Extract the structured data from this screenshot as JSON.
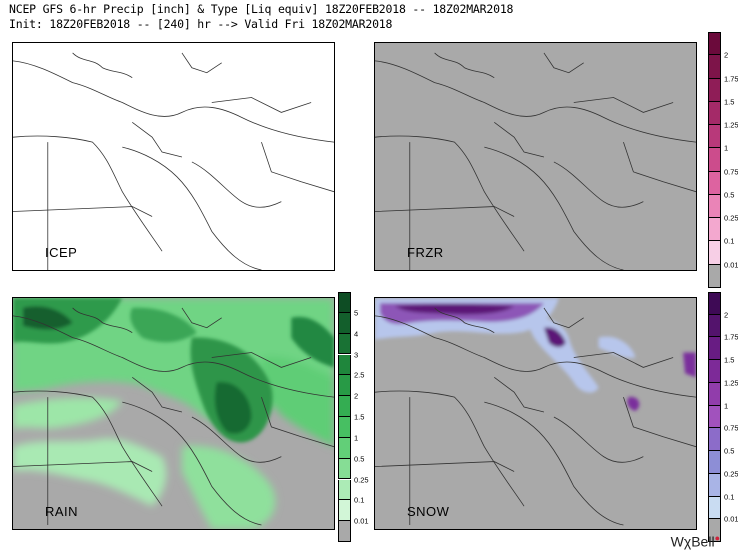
{
  "header": {
    "line1": "NCEP GFS 6-hr Precip [inch] & Type [Liq equiv] 18Z20FEB2018 -- 18Z02MAR2018",
    "line2": "Init: 18Z20FEB2018 -- [240] hr --> Valid Fri 18Z02MAR2018"
  },
  "panels": {
    "icep": {
      "label": "ICEP",
      "background": "#ffffff"
    },
    "frzr": {
      "label": "FRZR",
      "background": "#a9a9a9"
    },
    "rain": {
      "label": "RAIN",
      "background": "#a9a9a9"
    },
    "snow": {
      "label": "SNOW",
      "background": "#a9a9a9"
    }
  },
  "colorbars": {
    "frzr": {
      "ticks": [
        "2",
        "1.75",
        "1.5",
        "1.25",
        "1",
        "0.75",
        "0.5",
        "0.25",
        "0.1",
        "0.01"
      ],
      "colors": [
        "#6b0a3b",
        "#7d1449",
        "#8f1d57",
        "#a42a68",
        "#b8397a",
        "#cc4c8c",
        "#dd63a0",
        "#ea84b7",
        "#f3a8cf",
        "#f7cfe6",
        "#a9a9a9"
      ]
    },
    "rain": {
      "ticks": [
        "5",
        "4",
        "3",
        "2.5",
        "2",
        "1.5",
        "1",
        "0.5",
        "0.25",
        "0.1",
        "0.01"
      ],
      "colors": [
        "#0e4d24",
        "#135f2c",
        "#197234",
        "#1f863c",
        "#289a46",
        "#34ad52",
        "#47bf62",
        "#62cf78",
        "#86dd95",
        "#acebb6",
        "#d2f6d7",
        "#a9a9a9"
      ]
    },
    "snow": {
      "ticks": [
        "2",
        "1.75",
        "1.5",
        "1.25",
        "1",
        "0.75",
        "0.5",
        "0.25",
        "0.1",
        "0.01"
      ],
      "colors": [
        "#3e0a55",
        "#53136c",
        "#681c83",
        "#7d2a98",
        "#913dab",
        "#a152bd",
        "#8c6cc9",
        "#8d8ed6",
        "#a9b4e6",
        "#c9dcf2",
        "#a9a9a9"
      ]
    }
  },
  "branding": {
    "text": "WχBell"
  }
}
